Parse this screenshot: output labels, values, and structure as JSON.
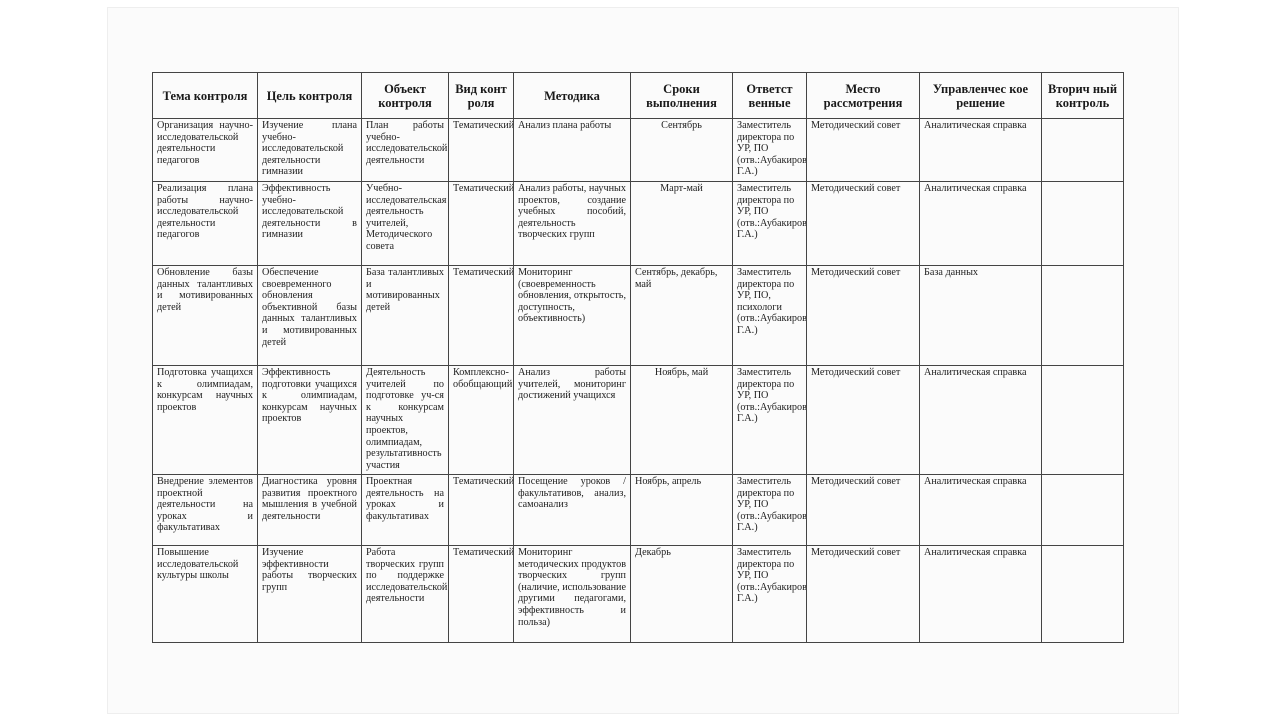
{
  "table": {
    "headers": [
      "Тема контроля",
      "Цель контроля",
      "Объект контроля",
      "Вид конт роля",
      "Методика",
      "Сроки выполнения",
      "Ответст венные",
      "Место рассмотрения",
      "Управленчес кое решение",
      "Вторич ный контроль"
    ],
    "rows": [
      [
        "Организация научно-исследовательской деятельности педагогов",
        "Изучение плана учебно-исследовательской деятельности гимназии",
        "План работы учебно-исследовательской деятельности",
        "Тематический",
        "Анализ плана работы",
        "Сентябрь",
        "Заместитель директора по УР, ПО (отв.:Аубакирова Г.А.)",
        "Методический совет",
        "Аналитическая справка",
        ""
      ],
      [
        "Реализация плана работы научно-исследовательской деятельности педагогов",
        "Эффективность учебно-исследовательской деятельности в гимназии",
        "Учебно-исследовательская деятельность учителей, Методического совета",
        "Тематический",
        "Анализ работы, научных проектов, создание учебных пособий, деятельность творческих групп",
        "Март-май",
        "Заместитель директора по УР, ПО (отв.:Аубакирова Г.А.)",
        "Методический совет",
        "Аналитическая справка",
        ""
      ],
      [
        "Обновление базы данных талантливых и мотивированных детей",
        "Обеспечение своевременного обновления объективной базы данных талантливых и мотивированных детей",
        "База талантливых и мотивированных детей",
        "Тематический",
        "Мониторинг (своевременность обновления, открытость, доступность, объективность)",
        "Сентябрь, декабрь, май",
        "Заместитель директора по УР, ПО, психологи (отв.:Аубакирова Г.А.)",
        "Методический совет",
        "База данных",
        ""
      ],
      [
        "Подготовка учащихся к олимпиадам, конкурсам научных проектов",
        "Эффективность подготовки учащихся к олимпиадам, конкурсам научных проектов",
        "Деятельность учителей по подготовке уч-ся к конкурсам научных проектов, олимпиадам, результативность участия",
        "Комплексно-обобщающий",
        "Анализ работы учителей, мониторинг достижений учащихся",
        "Ноябрь, май",
        "Заместитель директора по УР, ПО (отв.:Аубакирова Г.А.)",
        "Методический совет",
        "Аналитическая справка",
        ""
      ],
      [
        "Внедрение элементов проектной деятельности на уроках и факультативах",
        "Диагностика уровня развития проектного мышления в учебной деятельности",
        "Проектная деятельность на уроках и факультативах",
        "Тематический",
        "Посещение уроков / факультативов, анализ, самоанализ",
        "Ноябрь, апрель",
        "Заместитель директора по УР, ПО (отв.:Аубакирова Г.А.)",
        "Методический совет",
        "Аналитическая справка",
        ""
      ],
      [
        "Повышение исследовательской культуры школы",
        "Изучение эффективности работы творческих групп",
        "Работа творческих групп по поддержке исследовательской деятельности",
        "Тематический",
        "Мониторинг методических продуктов творческих групп (наличие, использование другими педагогами, эффективность и польза)",
        "Декабрь",
        "Заместитель директора по УР, ПО (отв.:Аубакирова Г.А.)",
        "Методический совет",
        "Аналитическая справка",
        ""
      ]
    ]
  }
}
